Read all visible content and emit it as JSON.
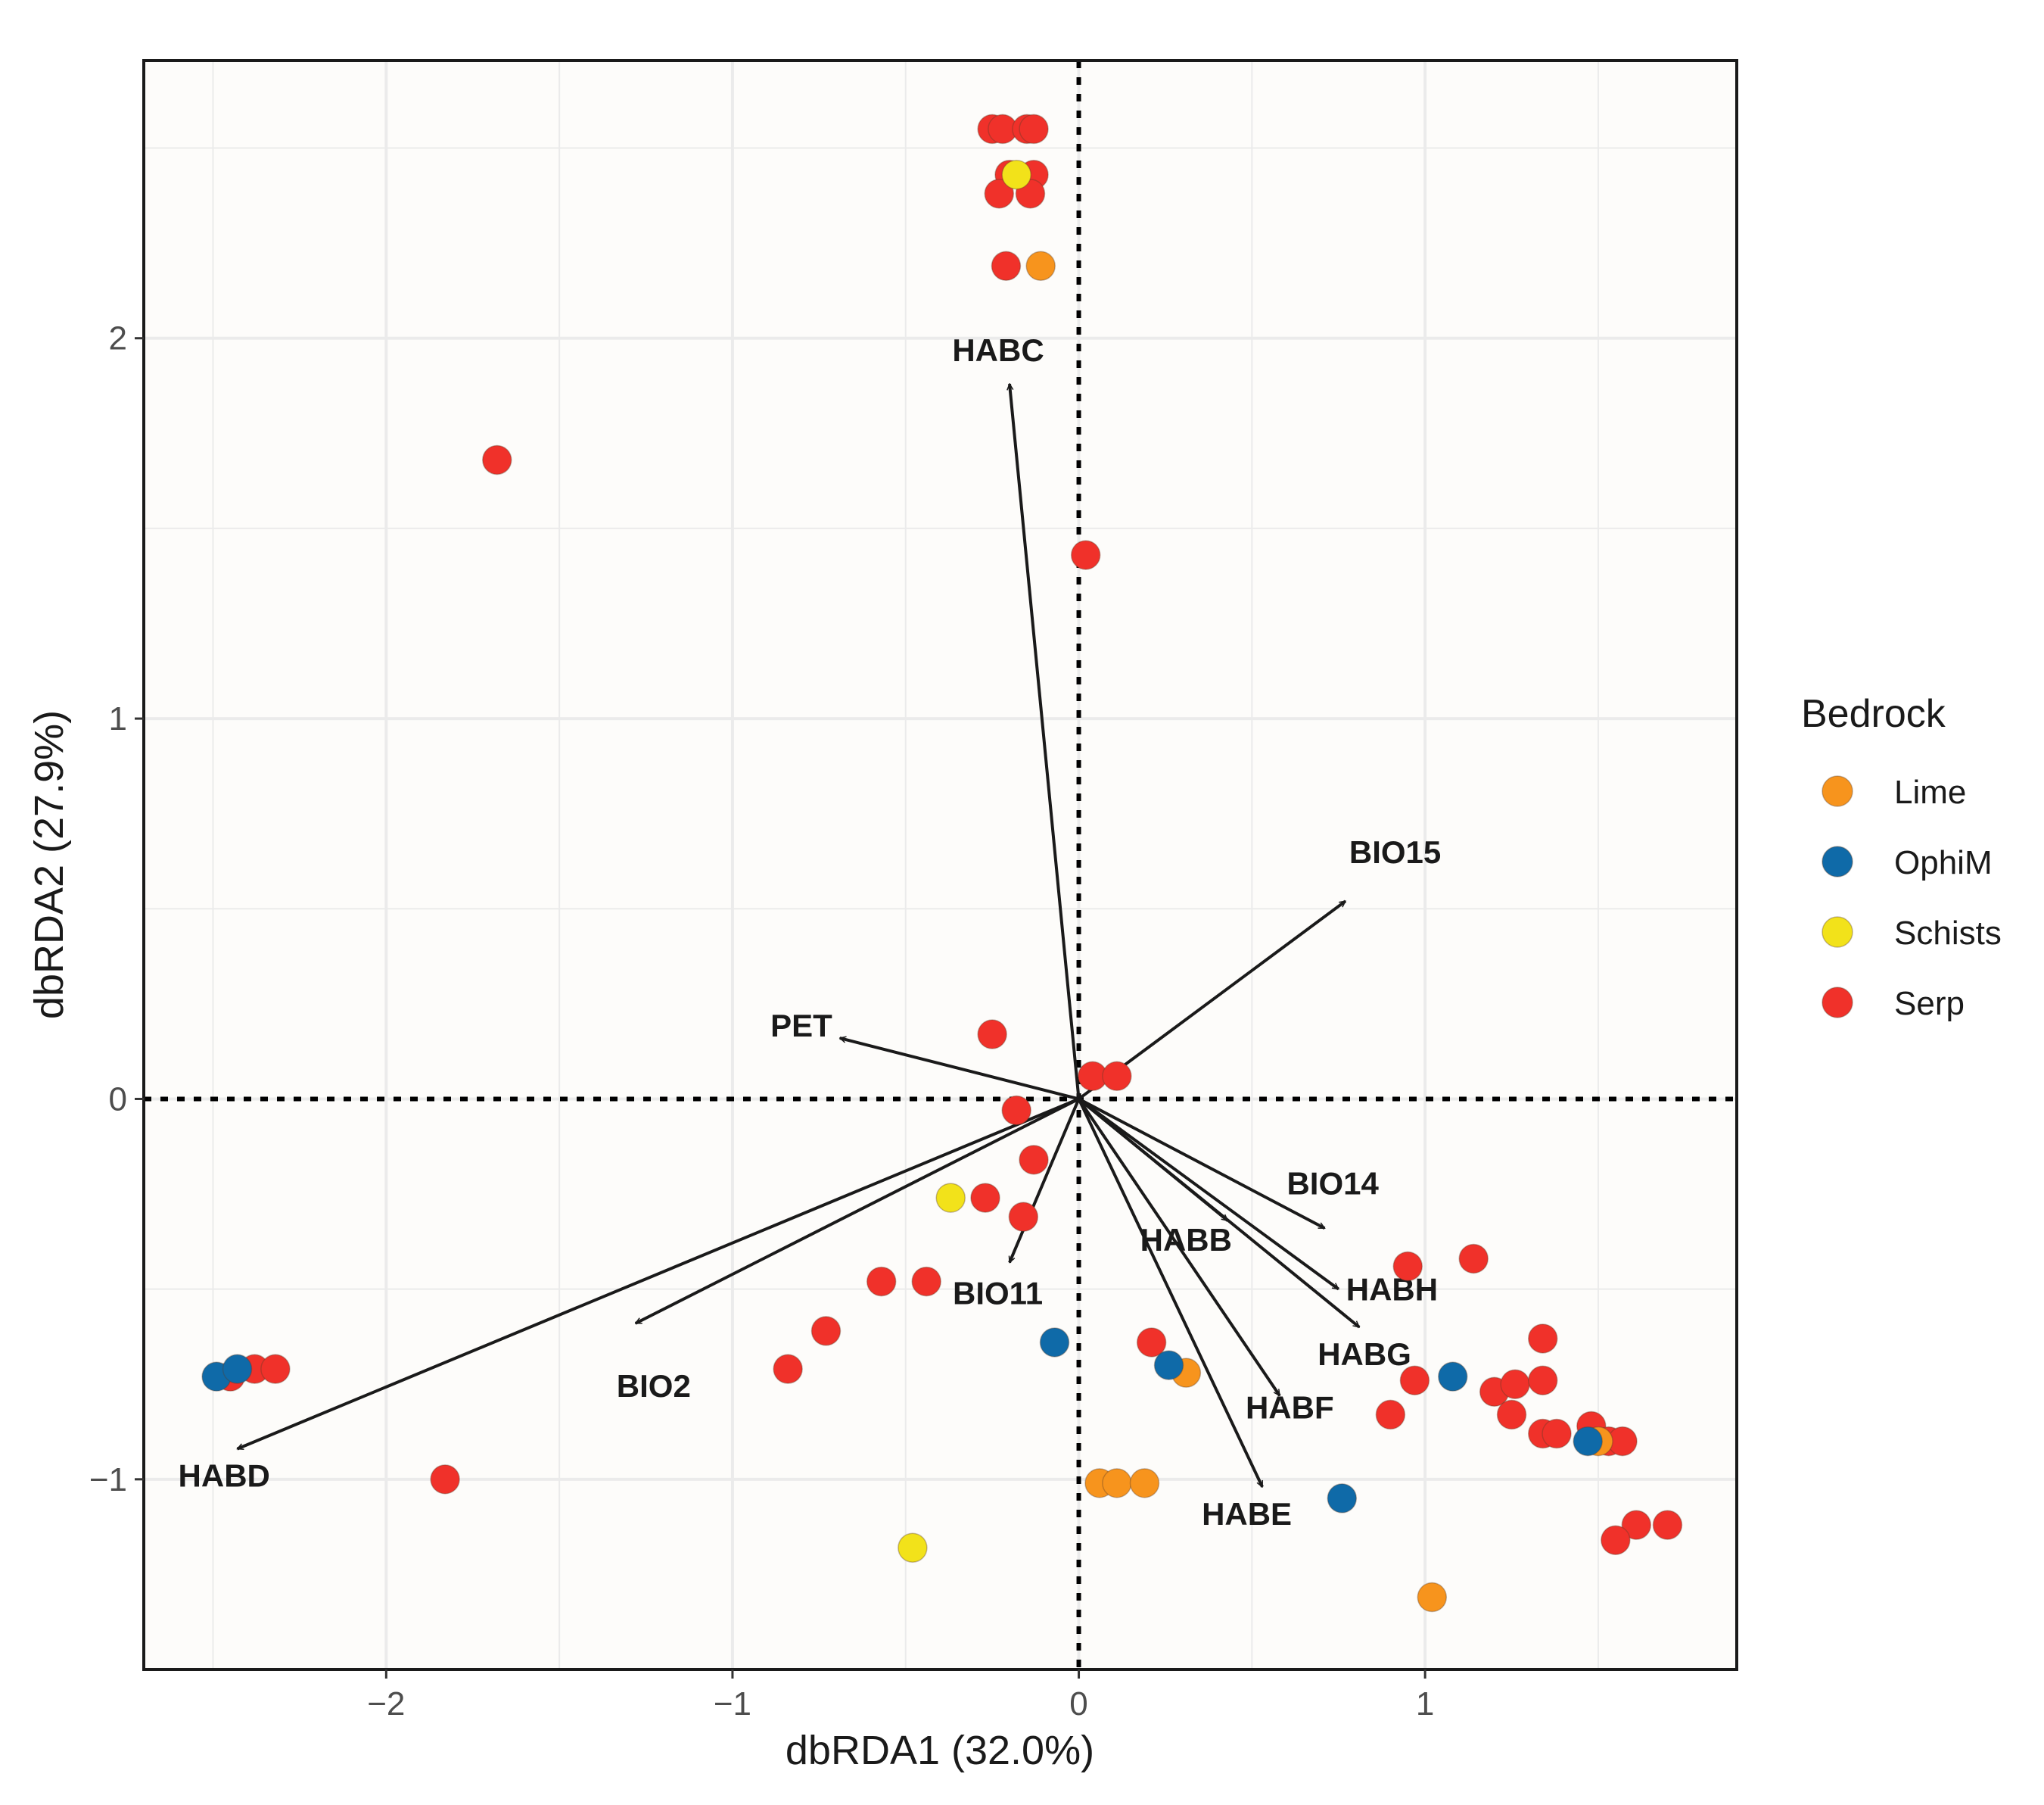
{
  "chart_data": {
    "type": "scatter",
    "xlabel": "dbRDA1 (32.0%)",
    "ylabel": "dbRDA2 (27.9%)",
    "xlim": [
      -2.7,
      1.9
    ],
    "ylim": [
      -1.5,
      2.73
    ],
    "x_ticks": [
      {
        "value": -2,
        "label": "−2"
      },
      {
        "value": -1,
        "label": "−1"
      },
      {
        "value": 0,
        "label": "0"
      },
      {
        "value": 1,
        "label": "1"
      }
    ],
    "y_ticks": [
      {
        "value": -1,
        "label": "−1"
      },
      {
        "value": 0,
        "label": "0"
      },
      {
        "value": 1,
        "label": "1"
      },
      {
        "value": 2,
        "label": "2"
      }
    ],
    "grid": true,
    "reference_lines": {
      "x": 0,
      "y": 0,
      "style": "dotted"
    },
    "legend": {
      "title": "Bedrock",
      "position": "right",
      "entries": [
        {
          "name": "Lime",
          "color": "#F7941D"
        },
        {
          "name": "OphiM",
          "color": "#0F6AA8"
        },
        {
          "name": "Schists",
          "color": "#F2E21A"
        },
        {
          "name": "Serp",
          "color": "#F0312A"
        }
      ]
    },
    "vectors": [
      {
        "name": "HABC",
        "x": -0.2,
        "y": 1.88
      },
      {
        "name": "BIO15",
        "x": 0.77,
        "y": 0.52
      },
      {
        "name": "PET",
        "x": -0.69,
        "y": 0.16
      },
      {
        "name": "BIO14",
        "x": 0.71,
        "y": -0.34
      },
      {
        "name": "HABB",
        "x": 0.43,
        "y": -0.32
      },
      {
        "name": "HABH",
        "x": 0.75,
        "y": -0.5
      },
      {
        "name": "HABG",
        "x": 0.81,
        "y": -0.6
      },
      {
        "name": "HABF",
        "x": 0.58,
        "y": -0.78
      },
      {
        "name": "HABE",
        "x": 0.53,
        "y": -1.02
      },
      {
        "name": "BIO11",
        "x": -0.2,
        "y": -0.43
      },
      {
        "name": "BIO2",
        "x": -1.28,
        "y": -0.59
      },
      {
        "name": "HABD",
        "x": -2.43,
        "y": -0.92
      }
    ],
    "series": [
      {
        "name": "Serp",
        "color": "#F0312A",
        "points": [
          {
            "x": -0.25,
            "y": 2.55
          },
          {
            "x": -0.22,
            "y": 2.55
          },
          {
            "x": -0.15,
            "y": 2.55
          },
          {
            "x": -0.13,
            "y": 2.55
          },
          {
            "x": -0.2,
            "y": 2.43
          },
          {
            "x": -0.13,
            "y": 2.43
          },
          {
            "x": -0.23,
            "y": 2.38
          },
          {
            "x": -0.14,
            "y": 2.38
          },
          {
            "x": -0.21,
            "y": 2.19
          },
          {
            "x": -1.68,
            "y": 1.68
          },
          {
            "x": 0.02,
            "y": 1.43
          },
          {
            "x": -0.25,
            "y": 0.17
          },
          {
            "x": 0.04,
            "y": 0.06
          },
          {
            "x": 0.11,
            "y": 0.06
          },
          {
            "x": -0.18,
            "y": -0.03
          },
          {
            "x": -0.13,
            "y": -0.16
          },
          {
            "x": -0.27,
            "y": -0.26
          },
          {
            "x": -0.16,
            "y": -0.31
          },
          {
            "x": -0.57,
            "y": -0.48
          },
          {
            "x": -0.44,
            "y": -0.48
          },
          {
            "x": -0.73,
            "y": -0.61
          },
          {
            "x": -0.84,
            "y": -0.71
          },
          {
            "x": -2.45,
            "y": -0.73
          },
          {
            "x": -2.38,
            "y": -0.71
          },
          {
            "x": -2.32,
            "y": -0.71
          },
          {
            "x": -1.83,
            "y": -1.0
          },
          {
            "x": 0.21,
            "y": -0.64
          },
          {
            "x": 0.95,
            "y": -0.44
          },
          {
            "x": 1.14,
            "y": -0.42
          },
          {
            "x": 1.34,
            "y": -0.63
          },
          {
            "x": 0.97,
            "y": -0.74
          },
          {
            "x": 1.2,
            "y": -0.77
          },
          {
            "x": 1.26,
            "y": -0.75
          },
          {
            "x": 1.34,
            "y": -0.74
          },
          {
            "x": 0.9,
            "y": -0.83
          },
          {
            "x": 1.25,
            "y": -0.83
          },
          {
            "x": 1.34,
            "y": -0.88
          },
          {
            "x": 1.38,
            "y": -0.88
          },
          {
            "x": 1.48,
            "y": -0.86
          },
          {
            "x": 1.53,
            "y": -0.9
          },
          {
            "x": 1.57,
            "y": -0.9
          },
          {
            "x": 1.61,
            "y": -1.12
          },
          {
            "x": 1.7,
            "y": -1.12
          },
          {
            "x": 1.55,
            "y": -1.16
          }
        ]
      },
      {
        "name": "Lime",
        "color": "#F7941D",
        "points": [
          {
            "x": -0.11,
            "y": 2.19
          },
          {
            "x": 0.31,
            "y": -0.72
          },
          {
            "x": 0.06,
            "y": -1.01
          },
          {
            "x": 0.11,
            "y": -1.01
          },
          {
            "x": 0.19,
            "y": -1.01
          },
          {
            "x": 1.5,
            "y": -0.9
          },
          {
            "x": 1.02,
            "y": -1.31
          }
        ]
      },
      {
        "name": "OphiM",
        "color": "#0F6AA8",
        "points": [
          {
            "x": -2.49,
            "y": -0.73
          },
          {
            "x": -2.43,
            "y": -0.71
          },
          {
            "x": -0.07,
            "y": -0.64
          },
          {
            "x": 0.26,
            "y": -0.7
          },
          {
            "x": 1.08,
            "y": -0.73
          },
          {
            "x": 1.47,
            "y": -0.9
          },
          {
            "x": 0.76,
            "y": -1.05
          }
        ]
      },
      {
        "name": "Schists",
        "color": "#F2E21A",
        "points": [
          {
            "x": -0.18,
            "y": 2.43
          },
          {
            "x": -0.37,
            "y": -0.26
          },
          {
            "x": -0.48,
            "y": -1.18
          }
        ]
      }
    ]
  }
}
